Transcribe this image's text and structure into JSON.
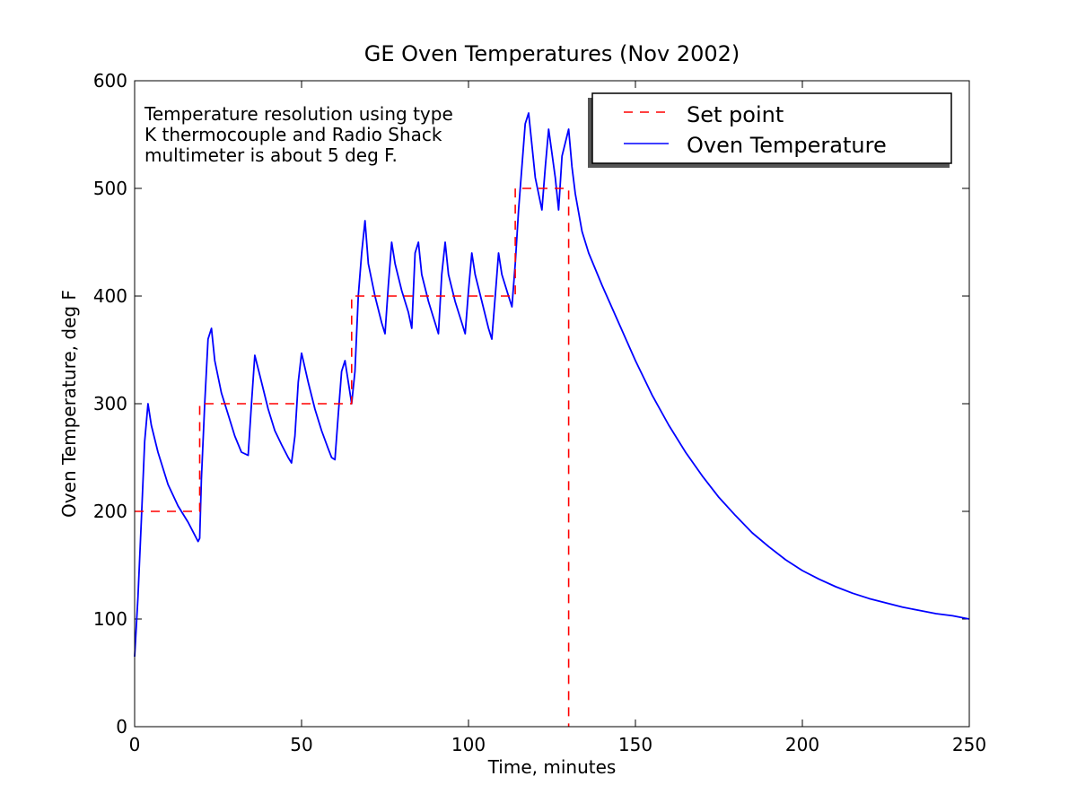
{
  "chart_data": {
    "type": "line",
    "title": "GE Oven Temperatures (Nov 2002)",
    "xlabel": "Time, minutes",
    "ylabel": "Oven Temperature, deg F",
    "xlim": [
      0,
      250
    ],
    "ylim": [
      0,
      600
    ],
    "xticks": [
      0,
      50,
      100,
      150,
      200,
      250
    ],
    "yticks": [
      0,
      100,
      200,
      300,
      400,
      500,
      600
    ],
    "grid": false,
    "legend_position": "top-right",
    "annotation": [
      "Temperature resolution using type",
      "K thermocouple and Radio Shack",
      "multimeter is about 5 deg F."
    ],
    "series": [
      {
        "name": "Set point",
        "color": "#ff0000",
        "style": "dashed",
        "x": [
          0,
          19.5,
          19.5,
          65,
          65,
          114,
          114,
          130,
          130
        ],
        "y": [
          200,
          200,
          300,
          300,
          400,
          400,
          500,
          500,
          0
        ]
      },
      {
        "name": "Oven Temperature",
        "color": "#0000ff",
        "style": "solid",
        "x": [
          0,
          1,
          2,
          3,
          4,
          5,
          7,
          10,
          13,
          16,
          18,
          19,
          19.5,
          20,
          21,
          22,
          23,
          24,
          26,
          28,
          30,
          32,
          34,
          35,
          36,
          38,
          40,
          42,
          44,
          46,
          47,
          48,
          49,
          50,
          52,
          54,
          56,
          58,
          59,
          60,
          61,
          62,
          63,
          64,
          65,
          66,
          67,
          68,
          69,
          70,
          72,
          74,
          75,
          76,
          77,
          78,
          80,
          82,
          83,
          84,
          85,
          86,
          88,
          90,
          91,
          92,
          93,
          94,
          96,
          98,
          99,
          100,
          101,
          102,
          104,
          106,
          107,
          108,
          109,
          110,
          112,
          113,
          114,
          115,
          116,
          117,
          118,
          119,
          120,
          122,
          123,
          124,
          126,
          127,
          128,
          130,
          131,
          132,
          134,
          136,
          140,
          145,
          150,
          155,
          160,
          165,
          170,
          175,
          180,
          185,
          190,
          195,
          200,
          205,
          210,
          215,
          220,
          225,
          230,
          235,
          240,
          245,
          250
        ],
        "y": [
          65,
          120,
          190,
          265,
          300,
          280,
          255,
          225,
          205,
          190,
          178,
          172,
          175,
          230,
          300,
          360,
          370,
          340,
          310,
          290,
          270,
          255,
          252,
          300,
          345,
          320,
          295,
          275,
          262,
          250,
          245,
          270,
          320,
          347,
          320,
          295,
          275,
          258,
          250,
          248,
          290,
          330,
          340,
          320,
          300,
          330,
          400,
          440,
          470,
          430,
          400,
          375,
          365,
          410,
          450,
          430,
          405,
          385,
          370,
          440,
          450,
          420,
          395,
          375,
          365,
          420,
          450,
          420,
          395,
          375,
          365,
          405,
          440,
          420,
          395,
          370,
          360,
          400,
          440,
          420,
          400,
          390,
          430,
          480,
          520,
          560,
          570,
          540,
          510,
          480,
          520,
          555,
          510,
          480,
          530,
          555,
          520,
          495,
          460,
          440,
          410,
          375,
          340,
          308,
          280,
          255,
          233,
          213,
          196,
          180,
          167,
          155,
          145,
          137,
          130,
          124,
          119,
          115,
          111,
          108,
          105,
          103,
          100
        ]
      }
    ]
  }
}
